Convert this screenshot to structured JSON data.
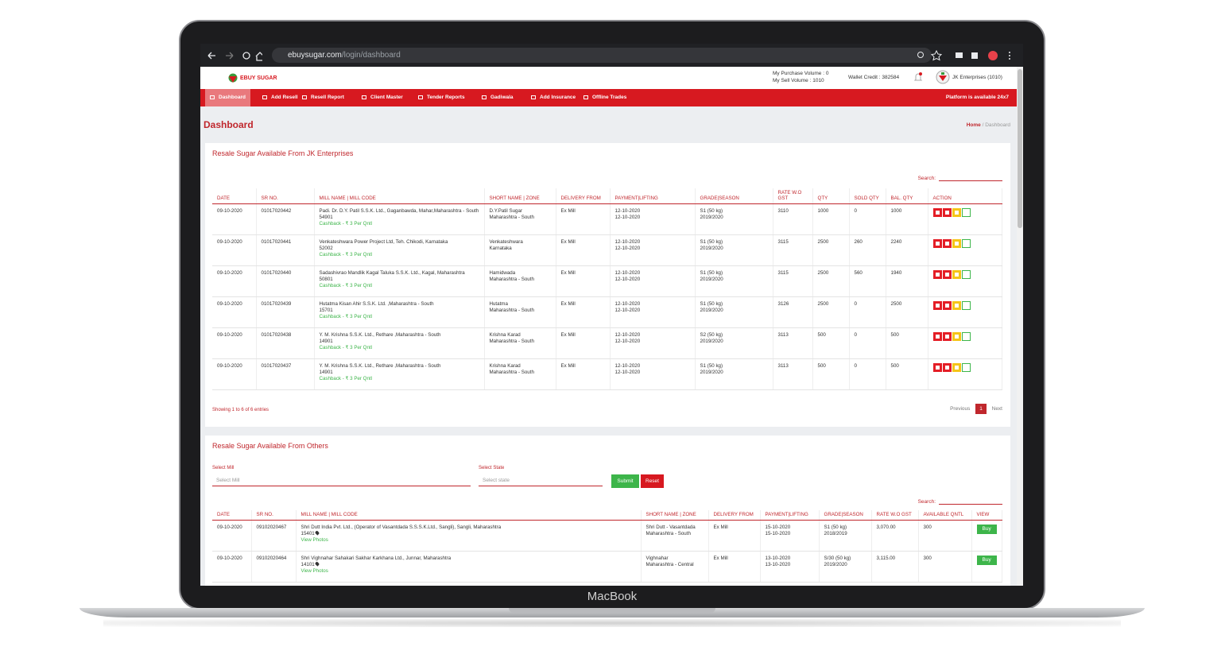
{
  "browser": {
    "url_domain": "ebuysugar.com",
    "url_path": "/login/dashboard"
  },
  "header": {
    "logo": "EBUY SUGAR",
    "purchase_volume": "My Purchase Volume : 0",
    "sell_volume": "My Sell Volume : 1010",
    "wallet": "Wallet Credit : 382584",
    "user": "JK Enterprises (1010)"
  },
  "nav": {
    "items": [
      "Dashboard",
      "Add Resell",
      "Resell Report",
      "Client Master",
      "Tender Reports",
      "Gadiwala",
      "Add Insurance",
      "Offline Trades"
    ],
    "status": "Platform is available 24x7"
  },
  "page": {
    "title": "Dashboard",
    "breadcrumb_home": "Home",
    "breadcrumb_sep": "/",
    "breadcrumb_current": "Dashboard"
  },
  "own_table": {
    "title": "Resale Sugar Available From JK Enterprises",
    "search_label": "Search:",
    "columns": [
      "DATE",
      "SR NO.",
      "MILL NAME | MILL CODE",
      "SHORT NAME | ZONE",
      "DELIVERY FROM",
      "PAYMENT|LIFTING",
      "GRADE|SEASON",
      "RATE W.O GST",
      "QTY",
      "SOLD QTY",
      "BAL. QTY",
      "ACTION"
    ],
    "rows": [
      {
        "date": "09-10-2020",
        "sr_no": "01017020442",
        "mill_name": "Padi. Dr. D.Y. Patil S.S.K. Ltd., Gaganbawda, Mahar,Maharashtra - South",
        "mill_code": "54901",
        "cashback": "Cashback - ₹ 3 Per Qntl",
        "short_name": "D.Y.Patil Sugar",
        "zone": "Maharashtra - South",
        "delivery": "Ex Mill",
        "payment": "12-10-2020",
        "lifting": "12-10-2020",
        "grade": "S1 (50 kg)",
        "season": "2019/2020",
        "rate": "3110",
        "qty": "1000",
        "sold_qty": "0",
        "bal_qty": "1000"
      },
      {
        "date": "09-10-2020",
        "sr_no": "01017020441",
        "mill_name": "Venkateshwara Power Project Ltd, Teh. Chikodi, Karnataka",
        "mill_code": "52002",
        "cashback": "Cashback - ₹ 3 Per Qntl",
        "short_name": "Venkateshwara",
        "zone": "Karnataka",
        "delivery": "Ex Mill",
        "payment": "12-10-2020",
        "lifting": "12-10-2020",
        "grade": "S1 (50 kg)",
        "season": "2019/2020",
        "rate": "3115",
        "qty": "2500",
        "sold_qty": "260",
        "bal_qty": "2240"
      },
      {
        "date": "09-10-2020",
        "sr_no": "01017020440",
        "mill_name": "Sadashivrao Mandlik Kagal Taluka S.S.K. Ltd., Kagal, Maharashtra",
        "mill_code": "50801",
        "cashback": "Cashback - ₹ 3 Per Qntl",
        "short_name": "Hamidwada",
        "zone": "Maharashtra - South",
        "delivery": "Ex Mill",
        "payment": "12-10-2020",
        "lifting": "12-10-2020",
        "grade": "S1 (50 kg)",
        "season": "2019/2020",
        "rate": "3115",
        "qty": "2500",
        "sold_qty": "560",
        "bal_qty": "1940"
      },
      {
        "date": "09-10-2020",
        "sr_no": "01017020439",
        "mill_name": "Hutatma Kisan Ahir S.S.K. Ltd. ,Maharashtra - South",
        "mill_code": "15701",
        "cashback": "Cashback - ₹ 3 Per Qntl",
        "short_name": "Hutatma",
        "zone": "Maharashtra - South",
        "delivery": "Ex Mill",
        "payment": "12-10-2020",
        "lifting": "12-10-2020",
        "grade": "S1 (50 kg)",
        "season": "2019/2020",
        "rate": "3126",
        "qty": "2500",
        "sold_qty": "0",
        "bal_qty": "2500"
      },
      {
        "date": "09-10-2020",
        "sr_no": "01017020438",
        "mill_name": "Y. M. Krishna S.S.K. Ltd., Rethare ,Maharashtra - South",
        "mill_code": "14901",
        "cashback": "Cashback - ₹ 3 Per Qntl",
        "short_name": "Krishna Karad",
        "zone": "Maharashtra - South",
        "delivery": "Ex Mill",
        "payment": "12-10-2020",
        "lifting": "12-10-2020",
        "grade": "S2 (50 kg)",
        "season": "2019/2020",
        "rate": "3113",
        "qty": "500",
        "sold_qty": "0",
        "bal_qty": "500"
      },
      {
        "date": "09-10-2020",
        "sr_no": "01017020437",
        "mill_name": "Y. M. Krishna S.S.K. Ltd., Rethare ,Maharashtra - South",
        "mill_code": "14901",
        "cashback": "Cashback - ₹ 3 Per Qntl",
        "short_name": "Krishna Karad",
        "zone": "Maharashtra - South",
        "delivery": "Ex Mill",
        "payment": "12-10-2020",
        "lifting": "12-10-2020",
        "grade": "S1 (50 kg)",
        "season": "2019/2020",
        "rate": "3113",
        "qty": "500",
        "sold_qty": "0",
        "bal_qty": "500"
      }
    ],
    "footer": "Showing 1 to 6 of 6 entries",
    "pagination": {
      "previous": "Previous",
      "page": "1",
      "next": "Next"
    }
  },
  "others_table": {
    "title": "Resale Sugar Available From Others",
    "mill_label": "Select Mill",
    "mill_placeholder": "Select Mill",
    "state_label": "Select State",
    "state_placeholder": "Select state",
    "submit": "Submit",
    "reset": "Reset",
    "search_label": "Search:",
    "columns": [
      "DATE",
      "SR NO.",
      "MILL NAME | MILL CODE",
      "SHORT NAME | ZONE",
      "DELIVERY FROM",
      "PAYMENT|LIFTING",
      "GRADE|SEASON",
      "RATE W.O GST",
      "AVAILABLE QNTL",
      "VIEW"
    ],
    "rows": [
      {
        "date": "09-10-2020",
        "sr_no": "09102020467",
        "mill_name": "Shri Dutt India Pvt. Ltd., (Operator of Vasantdada S.S.S.K.Ltd., Sangli), Sangli, Maharashtra",
        "mill_code": "15401",
        "photos": "View Photos",
        "short_name": "Shri Dutt - Vasantdada",
        "zone": "Maharashtra - South",
        "delivery": "Ex Mill",
        "payment": "15-10-2020",
        "lifting": "15-10-2020",
        "grade": "S1 (50 kg)",
        "season": "2018/2019",
        "rate": "3,070.00",
        "available": "300",
        "action": "Buy"
      },
      {
        "date": "09-10-2020",
        "sr_no": "09102020464",
        "mill_name": "Shri Vighnahar Sahakari Sakhar Karkhana Ltd., Junnar, Maharashtra",
        "mill_code": "14101",
        "photos": "View Photos",
        "short_name": "Vighnahar",
        "zone": "Maharashtra - Central",
        "delivery": "Ex Mill",
        "payment": "13-10-2020",
        "lifting": "13-10-2020",
        "grade": "S/30 (50 kg)",
        "season": "2019/2020",
        "rate": "3,115.00",
        "available": "300",
        "action": "Buy"
      }
    ]
  },
  "device": {
    "label": "MacBook"
  }
}
